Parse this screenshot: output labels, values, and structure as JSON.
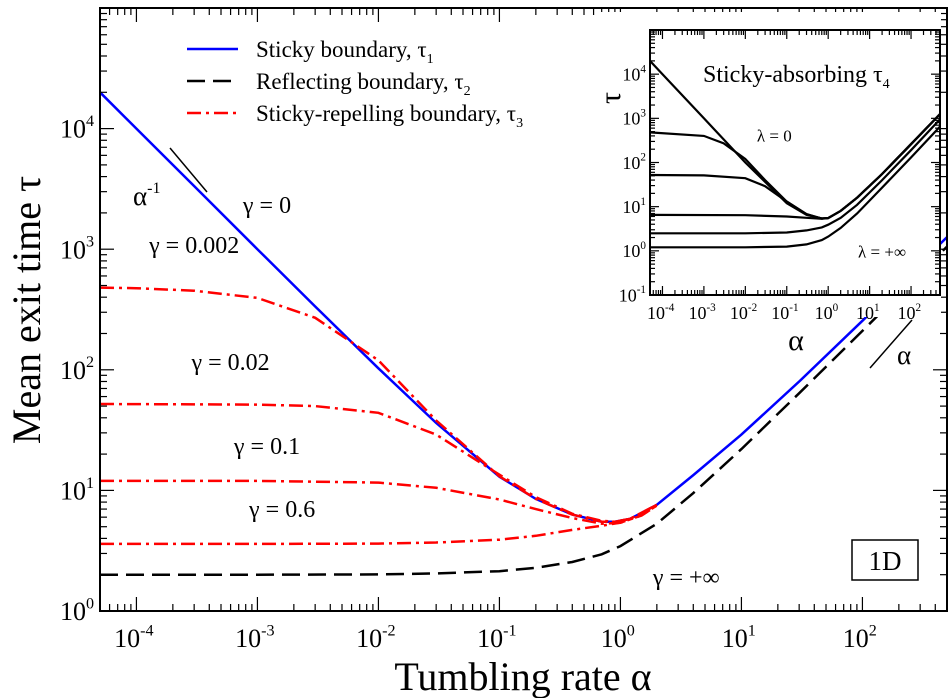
{
  "chart_data": [
    {
      "type": "line",
      "title": "",
      "xlabel": "Tumbling rate α",
      "ylabel": "Mean exit time τ",
      "xscale": "log",
      "yscale": "log",
      "xlim": [
        5e-05,
        500
      ],
      "ylim": [
        1,
        100000
      ],
      "x_ticks": [
        {
          "value": 0.0001,
          "base": "10",
          "exp": "-4"
        },
        {
          "value": 0.001,
          "base": "10",
          "exp": "-3"
        },
        {
          "value": 0.01,
          "base": "10",
          "exp": "-2"
        },
        {
          "value": 0.1,
          "base": "10",
          "exp": "-1"
        },
        {
          "value": 1,
          "base": "10",
          "exp": "0"
        },
        {
          "value": 10,
          "base": "10",
          "exp": "1"
        },
        {
          "value": 100,
          "base": "10",
          "exp": "2"
        }
      ],
      "y_ticks": [
        {
          "value": 1,
          "base": "10",
          "exp": "0"
        },
        {
          "value": 10,
          "base": "10",
          "exp": "1"
        },
        {
          "value": 100,
          "base": "10",
          "exp": "2"
        },
        {
          "value": 1000,
          "base": "10",
          "exp": "3"
        },
        {
          "value": 10000,
          "base": "10",
          "exp": "4"
        }
      ],
      "legend_position": "top-center",
      "legend": [
        {
          "label": "Sticky boundary, τ",
          "sub": "1",
          "color": "#0000ff",
          "dash": "solid"
        },
        {
          "label": "Reflecting boundary, τ",
          "sub": "2",
          "color": "#000000",
          "dash": "dashed"
        },
        {
          "label": "Sticky-repelling boundary, τ",
          "sub": "3",
          "color": "#ff0000",
          "dash": "dash-dot"
        }
      ],
      "series": [
        {
          "name": "Sticky boundary, τ1",
          "color": "#0000ff",
          "dash": "solid",
          "x": [
            5e-05,
            0.0001,
            0.0003,
            0.001,
            0.003,
            0.01,
            0.03,
            0.1,
            0.2,
            0.4,
            0.7,
            0.9,
            1.2,
            2,
            4,
            10,
            30,
            100,
            500
          ],
          "y": [
            20000,
            10000,
            3333,
            1000,
            335,
            103,
            36.2,
            13.0,
            8.5,
            6.3,
            5.5,
            5.5,
            5.8,
            7.6,
            13.4,
            29,
            80,
            255,
            1260
          ]
        },
        {
          "name": "Reflecting boundary, τ2",
          "color": "#000000",
          "dash": "dashed",
          "x": [
            5e-05,
            0.001,
            0.01,
            0.03,
            0.1,
            0.2,
            0.4,
            0.7,
            1,
            2,
            4,
            10,
            30,
            100,
            500
          ],
          "y": [
            2,
            2,
            2.01,
            2.05,
            2.14,
            2.28,
            2.55,
            2.95,
            3.45,
            5.3,
            9.5,
            22,
            64,
            210,
            1050
          ]
        },
        {
          "name": "γ = 0.002",
          "color": "#ff0000",
          "dash": "dash-dot",
          "x": [
            5e-05,
            0.0001,
            0.0003,
            0.001,
            0.003,
            0.01,
            0.03,
            0.1,
            0.2,
            0.4,
            0.7,
            0.9,
            1.2,
            2
          ],
          "y": [
            480,
            475,
            453,
            395,
            270,
            120,
            38,
            13.1,
            8.5,
            6.3,
            5.5,
            5.5,
            5.8,
            7.6
          ]
        },
        {
          "name": "γ = 0.02",
          "color": "#ff0000",
          "dash": "dash-dot",
          "x": [
            5e-05,
            0.001,
            0.003,
            0.01,
            0.03,
            0.1,
            0.2,
            0.4,
            0.7,
            0.9,
            1.2,
            2
          ],
          "y": [
            52,
            51.5,
            50,
            44,
            29,
            13.5,
            8.8,
            6.4,
            5.6,
            5.5,
            5.8,
            7.6
          ]
        },
        {
          "name": "γ = 0.1",
          "color": "#ff0000",
          "dash": "dash-dot",
          "x": [
            5e-05,
            0.001,
            0.01,
            0.03,
            0.1,
            0.2,
            0.4,
            0.7,
            1,
            1.5,
            2
          ],
          "y": [
            12,
            12,
            11.6,
            10.5,
            8.4,
            7,
            5.9,
            5.3,
            5.4,
            6.2,
            7.5
          ]
        },
        {
          "name": "γ = 0.6",
          "color": "#ff0000",
          "dash": "dash-dot",
          "x": [
            5e-05,
            0.001,
            0.01,
            0.03,
            0.1,
            0.2,
            0.4,
            0.7,
            1,
            1.5,
            2
          ],
          "y": [
            3.6,
            3.6,
            3.62,
            3.7,
            3.9,
            4.2,
            4.7,
            5.1,
            5.4,
            6.2,
            7.5
          ]
        }
      ],
      "annotations": [
        {
          "text": "γ = 0",
          "at": [
            0.0012,
            2000
          ]
        },
        {
          "text": "γ = 0.002",
          "at": [
            0.0003,
            930
          ]
        },
        {
          "text": "γ = 0.02",
          "at": [
            0.0006,
            100
          ]
        },
        {
          "text": "γ = 0.1",
          "at": [
            0.0012,
            20
          ]
        },
        {
          "text": "γ = 0.6",
          "at": [
            0.0016,
            6
          ]
        },
        {
          "text": "γ = +∞",
          "at": [
            3.5,
            1.65
          ]
        },
        {
          "text": "1D",
          "at": [
            200,
            2.5
          ]
        }
      ],
      "slope_guides": [
        {
          "label": "α",
          "sup": "-1"
        },
        {
          "label": "α",
          "sup": ""
        }
      ]
    },
    {
      "type": "line",
      "title": "Sticky-absorbing τ",
      "title_sub": "4",
      "xlabel": "α",
      "ylabel": "τ",
      "xscale": "log",
      "yscale": "log",
      "xlim": [
        5e-05,
        500
      ],
      "ylim": [
        0.1,
        100000
      ],
      "x_ticks": [
        {
          "value": 0.0001,
          "base": "10",
          "exp": "-4"
        },
        {
          "value": 0.001,
          "base": "10",
          "exp": "-3"
        },
        {
          "value": 0.01,
          "base": "10",
          "exp": "-2"
        },
        {
          "value": 0.1,
          "base": "10",
          "exp": "-1"
        },
        {
          "value": 1,
          "base": "10",
          "exp": "0"
        },
        {
          "value": 10,
          "base": "10",
          "exp": "1"
        },
        {
          "value": 100,
          "base": "10",
          "exp": "2"
        }
      ],
      "y_ticks": [
        {
          "value": 0.1,
          "base": "10",
          "exp": "-1"
        },
        {
          "value": 1,
          "base": "10",
          "exp": "0"
        },
        {
          "value": 10,
          "base": "10",
          "exp": "1"
        },
        {
          "value": 100,
          "base": "10",
          "exp": "2"
        },
        {
          "value": 1000,
          "base": "10",
          "exp": "3"
        },
        {
          "value": 10000,
          "base": "10",
          "exp": "4"
        }
      ],
      "series": [
        {
          "name": "λ = 0",
          "color": "#000000",
          "x": [
            5e-05,
            0.0001,
            0.001,
            0.01,
            0.1,
            0.3,
            0.7,
            1,
            2,
            5,
            20,
            100,
            500
          ],
          "y": [
            20000,
            10000,
            1000,
            100,
            12,
            6.5,
            5.4,
            5.5,
            8,
            16,
            55,
            260,
            1250
          ]
        },
        {
          "name": "",
          "color": "#000000",
          "x": [
            5e-05,
            0.001,
            0.003,
            0.01,
            0.03,
            0.1,
            0.3,
            0.7,
            1,
            2,
            5,
            20,
            100,
            500
          ],
          "y": [
            480,
            400,
            270,
            120,
            40,
            13,
            6.7,
            5.4,
            5.5,
            8,
            16,
            55,
            260,
            1250
          ]
        },
        {
          "name": "",
          "color": "#000000",
          "x": [
            5e-05,
            0.001,
            0.01,
            0.03,
            0.1,
            0.3,
            0.7,
            1,
            2,
            5,
            20,
            100,
            500
          ],
          "y": [
            52,
            51,
            44,
            29,
            13,
            6.8,
            5.4,
            5.5,
            8,
            16,
            55,
            260,
            1250
          ]
        },
        {
          "name": "",
          "color": "#000000",
          "x": [
            5e-05,
            0.01,
            0.1,
            0.3,
            0.7,
            1,
            2,
            5,
            20,
            100,
            500
          ],
          "y": [
            6.5,
            6.4,
            6,
            5.6,
            5.3,
            5.5,
            8,
            16,
            55,
            260,
            1250
          ]
        },
        {
          "name": "",
          "color": "#000000",
          "x": [
            5e-05,
            0.01,
            0.1,
            0.3,
            0.7,
            1,
            2,
            5,
            20,
            100,
            500
          ],
          "y": [
            2.5,
            2.5,
            2.6,
            2.9,
            3.4,
            3.9,
            5.6,
            11,
            40,
            190,
            950
          ]
        },
        {
          "name": "λ = +∞",
          "color": "#000000",
          "x": [
            5e-05,
            0.01,
            0.1,
            0.3,
            0.7,
            1,
            2,
            5,
            20,
            100,
            500
          ],
          "y": [
            1.2,
            1.2,
            1.25,
            1.4,
            1.75,
            2.1,
            3.3,
            7,
            27,
            130,
            650
          ]
        }
      ],
      "annotations": [
        {
          "text": "λ = 0",
          "at": [
            0.05,
            300
          ]
        },
        {
          "text": "λ = +∞",
          "at": [
            20,
            0.7
          ]
        }
      ]
    }
  ]
}
